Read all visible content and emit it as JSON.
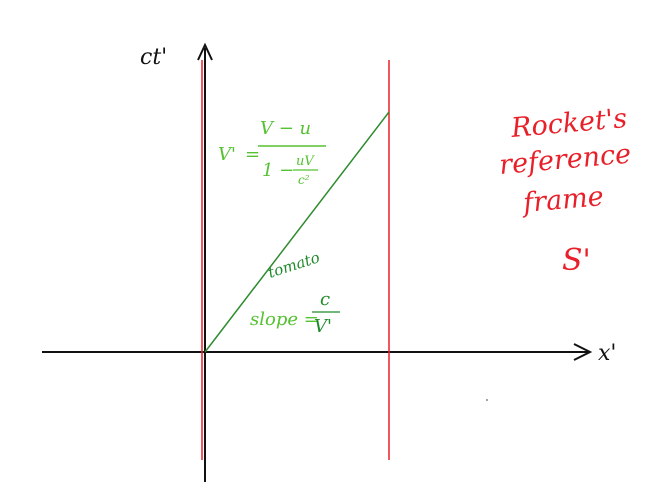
{
  "axes": {
    "vertical_label": "ct'",
    "horizontal_label": "x'"
  },
  "velocity_formula": {
    "lhs": "V'",
    "numerator": "V − u",
    "denominator_prefix": "1 −",
    "denominator_frac_top": "uV",
    "denominator_frac_bottom": "c²"
  },
  "worldline_label": {
    "name": "tomato",
    "slope_prefix": "slope =",
    "slope_top": "c",
    "slope_bottom": "V'"
  },
  "frame_caption": {
    "line1": "Rocket's",
    "line2": "reference",
    "line3": "frame",
    "symbol": "S'"
  },
  "colors": {
    "axis": "#111111",
    "red_lines": "#e8202a",
    "worldline": "#2e8b2e",
    "formula": "#55c232",
    "slope_text": "#1f8a2a"
  }
}
